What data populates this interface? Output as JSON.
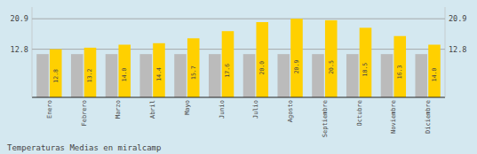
{
  "chart_data": {
    "type": "bar",
    "title": "Temperaturas Medias en miralcamp",
    "categories": [
      "Enero",
      "Febrero",
      "Marzo",
      "Abril",
      "Mayo",
      "Junio",
      "Julio",
      "Agosto",
      "Septiembre",
      "Octubre",
      "Noviembre",
      "Diciembre"
    ],
    "series": [
      {
        "color": "#BBBBBB",
        "values": [
          11.5,
          11.5,
          11.5,
          11.5,
          11.5,
          11.5,
          11.5,
          11.5,
          11.5,
          11.5,
          11.5,
          11.5
        ]
      },
      {
        "color": "#FFD000",
        "data_labels": true,
        "values": [
          12.8,
          13.2,
          14.0,
          14.4,
          15.7,
          17.6,
          20.0,
          20.9,
          20.5,
          18.5,
          16.3,
          14.0
        ],
        "value_labels": [
          "12.8",
          "13.2",
          "14.0",
          "14.4",
          "15.7",
          "17.6",
          "20.0",
          "20.9",
          "20.5",
          "18.5",
          "16.3",
          "14.0"
        ]
      }
    ],
    "ylim": [
      0,
      24.0
    ],
    "yticks": [
      12.8,
      20.9
    ],
    "y2lim": [
      0,
      24.0
    ],
    "y2ticks": [
      12.8,
      20.9
    ],
    "grid": true
  }
}
